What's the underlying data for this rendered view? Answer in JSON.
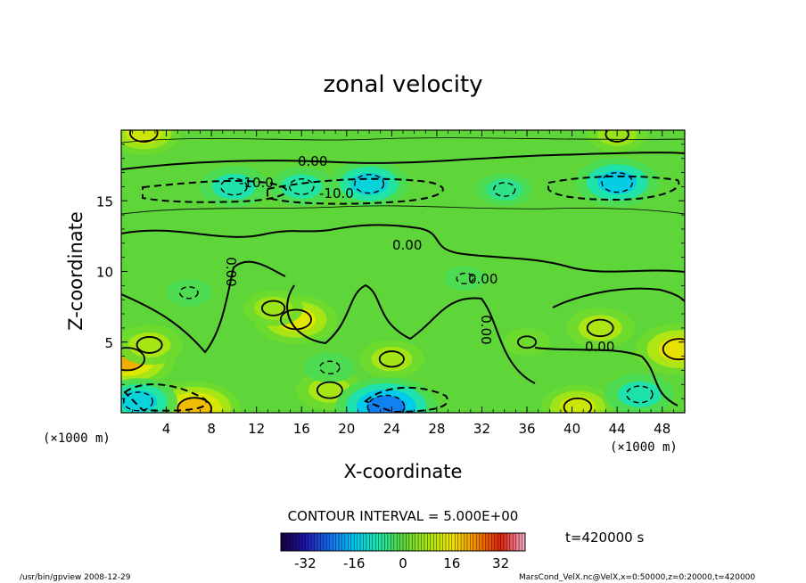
{
  "chart_data": {
    "type": "heatmap",
    "title": "zonal velocity",
    "xlabel": "X-coordinate",
    "ylabel": "Z-coordinate",
    "x_unit_label": "(×1000 m)",
    "x_unit_label_right": "(×1000 m)",
    "xlim": [
      0,
      50
    ],
    "ylim": [
      0,
      20
    ],
    "x_ticks": [
      4,
      8,
      12,
      16,
      20,
      24,
      28,
      32,
      36,
      40,
      44,
      48
    ],
    "y_ticks": [
      5,
      10,
      15
    ],
    "contour_interval_text": "CONTOUR INTERVAL = 5.000E+00",
    "contour_labels": [
      "0.00",
      "-10.0",
      "-10.0",
      "0.00",
      "0.00",
      "0.00",
      "0.00",
      "0.00"
    ],
    "colorbar": {
      "min": -40,
      "max": 40,
      "ticks": [
        -32,
        -16,
        0,
        16,
        32
      ]
    },
    "time_text": "t=420000 s",
    "features": [
      {
        "x": 0.5,
        "z": 3.8,
        "value": 28
      },
      {
        "x": 2.5,
        "z": 4.8,
        "value": 15
      },
      {
        "x": 15.5,
        "z": 6.6,
        "value": 22
      },
      {
        "x": 13.5,
        "z": 7.4,
        "value": 12
      },
      {
        "x": 42.5,
        "z": 6.0,
        "value": 16
      },
      {
        "x": 24.0,
        "z": 3.8,
        "value": 14
      },
      {
        "x": 49.5,
        "z": 4.5,
        "value": 24
      },
      {
        "x": 6.5,
        "z": 0.3,
        "value": 26
      },
      {
        "x": 18.5,
        "z": 1.6,
        "value": 15
      },
      {
        "x": 40.5,
        "z": 0.4,
        "value": 18
      },
      {
        "x": 36.0,
        "z": 5.0,
        "value": 6
      },
      {
        "x": 2.0,
        "z": 19.8,
        "value": 18
      },
      {
        "x": 44.0,
        "z": 19.7,
        "value": 12
      },
      {
        "x": 10.0,
        "z": 16.0,
        "value": -16
      },
      {
        "x": 22.0,
        "z": 16.2,
        "value": -20
      },
      {
        "x": 16.0,
        "z": 16.0,
        "value": -14
      },
      {
        "x": 34.0,
        "z": 15.8,
        "value": -10
      },
      {
        "x": 44.0,
        "z": 16.3,
        "value": -22
      },
      {
        "x": 1.5,
        "z": 0.8,
        "value": -20
      },
      {
        "x": 23.5,
        "z": 0.4,
        "value": -30
      },
      {
        "x": 46.0,
        "z": 1.3,
        "value": -16
      },
      {
        "x": 6.0,
        "z": 8.5,
        "value": -6
      },
      {
        "x": 18.5,
        "z": 3.2,
        "value": -8
      },
      {
        "x": 30.5,
        "z": 9.5,
        "value": -4
      }
    ]
  },
  "footer": {
    "left": "/usr/bin/gpview  2008-12-29",
    "right": "MarsCond_VelX.nc@VelX,x=0:50000,z=0:20000,t=420000"
  }
}
